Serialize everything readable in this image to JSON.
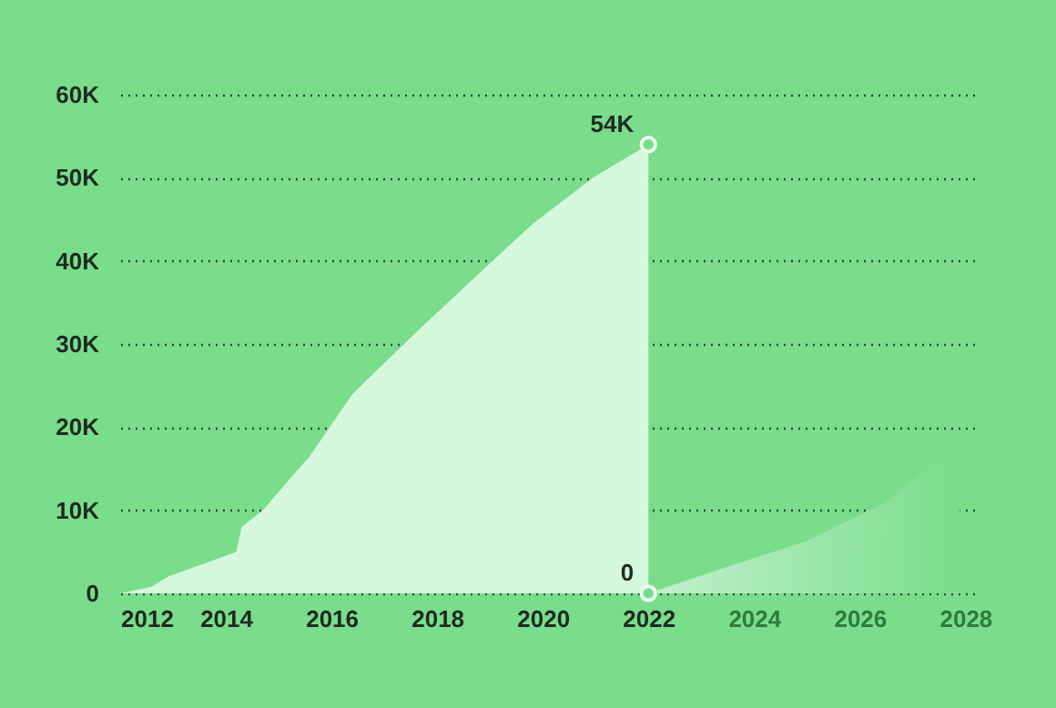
{
  "chart_data": {
    "type": "area",
    "xlim": [
      2012,
      2028.2
    ],
    "xticks": [
      2012,
      2014,
      2016,
      2018,
      2020,
      2022,
      2024,
      2026,
      2028
    ],
    "ylim": [
      0,
      60000
    ],
    "yticks": [
      0,
      {
        "value": 10000,
        "label": "10K"
      },
      {
        "value": 20000,
        "label": "20K"
      },
      {
        "value": 30000,
        "label": "30K"
      },
      {
        "value": 40000,
        "label": "40K"
      },
      {
        "value": 50000,
        "label": "50K"
      },
      {
        "value": 60000,
        "label": "60K"
      }
    ],
    "grid": "y",
    "series": [
      {
        "color": "#d5f7dc",
        "x": [
          2012,
          2012.6,
          2012.9,
          2014.2,
          2014.3,
          2014.7,
          2015.6,
          2016.4,
          2017.7,
          2019.1,
          2019.8,
          2020.95,
          2022
        ],
        "values": [
          0,
          800,
          2000,
          5000,
          8000,
          10000,
          16600,
          24000,
          32000,
          40300,
          44400,
          50000,
          54000
        ]
      },
      {
        "color": "#c4f0cd",
        "x": [
          2022,
          2023.3,
          2025,
          2026.5,
          2027.9
        ],
        "values": [
          0,
          2800,
          6300,
          11000,
          18000
        ]
      }
    ],
    "annotations": [
      {
        "text": "54K",
        "x": 2022,
        "y": 54000
      },
      {
        "text": "0",
        "x": 2022,
        "y": 0
      }
    ]
  }
}
